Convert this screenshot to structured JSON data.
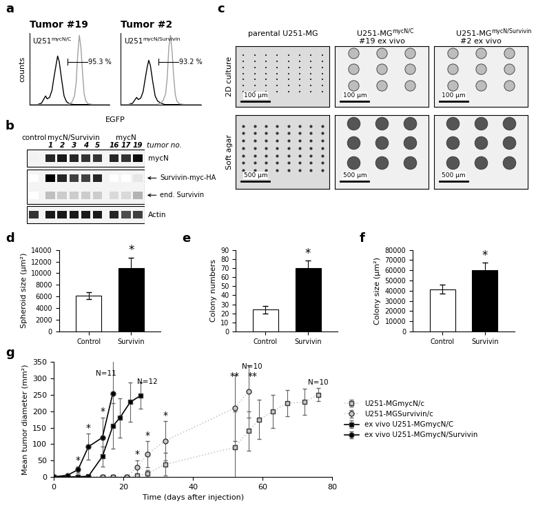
{
  "chart_data": [
    {
      "panel": "a",
      "type": "flow",
      "xlabel": "EGFP",
      "ylabel": "counts",
      "xlim": [
        0,
        100
      ],
      "ylim": [
        0,
        100
      ],
      "tick_labels": false,
      "plots": [
        {
          "title": "Tumor #19",
          "label": {
            "text": "U251",
            "sup": "mycN/C"
          },
          "gate": {
            "from": 47,
            "to": 72,
            "label": "95.3 %"
          },
          "series": [
            {
              "color": "#000000",
              "x": [
                0,
                10,
                15,
                18,
                20,
                22,
                25,
                28,
                30,
                33,
                35,
                37,
                40,
                43,
                46,
                50,
                55,
                100
              ],
              "values": [
                0,
                0,
                2,
                8,
                12,
                8,
                10,
                20,
                35,
                55,
                68,
                60,
                35,
                12,
                4,
                1,
                0,
                0
              ]
            },
            {
              "color": "#a0a0a0",
              "x": [
                0,
                45,
                50,
                53,
                56,
                58,
                60,
                62,
                64,
                66,
                68,
                70,
                73,
                80,
                100
              ],
              "values": [
                0,
                0,
                1,
                4,
                12,
                30,
                70,
                97,
                80,
                45,
                15,
                5,
                1,
                0,
                0
              ]
            }
          ]
        },
        {
          "title": "Tumor #2",
          "label": {
            "text": "U251",
            "sup": "mycN/Survivin"
          },
          "gate": {
            "from": 47,
            "to": 72,
            "label": "93.2 %"
          },
          "series": [
            {
              "color": "#000000",
              "x": [
                0,
                10,
                15,
                18,
                20,
                22,
                25,
                28,
                30,
                33,
                35,
                37,
                40,
                43,
                46,
                50,
                55,
                100
              ],
              "values": [
                0,
                0,
                2,
                7,
                10,
                7,
                9,
                18,
                32,
                52,
                62,
                55,
                32,
                12,
                5,
                2,
                0,
                0
              ]
            },
            {
              "color": "#a0a0a0",
              "x": [
                0,
                45,
                50,
                53,
                56,
                58,
                60,
                62,
                64,
                66,
                68,
                70,
                73,
                80,
                100
              ],
              "values": [
                0,
                0,
                2,
                6,
                15,
                38,
                80,
                97,
                75,
                40,
                14,
                5,
                1,
                0,
                0
              ]
            }
          ]
        }
      ]
    },
    {
      "panel": "b",
      "type": "blot",
      "groups": [
        {
          "label": "control",
          "lanes": [
            null
          ]
        },
        {
          "label": "mycN/Survivin",
          "lanes": [
            "1",
            "2",
            "3",
            "4",
            "5"
          ]
        },
        {
          "label": "mycN",
          "lanes": [
            "16",
            "17",
            "19"
          ]
        }
      ],
      "lane_title": "tumor no.",
      "blots": [
        {
          "rows": [
            {
              "label": "mycN",
              "intensity": [
                0.05,
                0.85,
                0.9,
                0.85,
                0.8,
                0.8,
                0.85,
                0.8,
                0.95
              ]
            }
          ]
        },
        {
          "rows": [
            {
              "label": "Survivin-myc-HA",
              "intensity": [
                0,
                1.0,
                0.85,
                0.75,
                0.75,
                0.85,
                0,
                0,
                0.1
              ]
            },
            {
              "label": "end. Survivin",
              "intensity": [
                0,
                0.25,
                0.2,
                0.2,
                0.2,
                0.2,
                0.15,
                0.15,
                0.3
              ]
            }
          ]
        },
        {
          "rows": [
            {
              "label": "Actin",
              "intensity": [
                0.8,
                0.9,
                0.9,
                0.9,
                0.9,
                0.9,
                0.85,
                0.7,
                0.75
              ]
            }
          ]
        }
      ]
    },
    {
      "panel": "c",
      "type": "image_grid",
      "columns": [
        {
          "text": "parental U251-MG"
        },
        {
          "text": "U251-MG",
          "sup": "mycN/C",
          "line2": "#19 ex vivo"
        },
        {
          "text": "U251-MG",
          "sup": "mycN/Survivin",
          "line2": "#2 ex vivo"
        }
      ],
      "rows": [
        {
          "label": "2D culture",
          "scale_bars": [
            "100 µm",
            "100 µm",
            "100 µm"
          ]
        },
        {
          "label": "Soft agar",
          "scale_bars": [
            "500 µm",
            "500 µm",
            "500 µm"
          ]
        }
      ]
    },
    {
      "panel": "d",
      "type": "bar",
      "ylabel": "Spheroid size (µm²)",
      "categories": [
        "Control",
        "Survivin"
      ],
      "values": [
        6100,
        10900
      ],
      "errors": [
        600,
        1800
      ],
      "colors": [
        "#ffffff",
        "#000000"
      ],
      "ylim": [
        0,
        14000
      ],
      "yticks": [
        0,
        2000,
        4000,
        6000,
        8000,
        10000,
        12000,
        14000
      ],
      "annotations": [
        {
          "text": "*",
          "category": "Survivin"
        }
      ]
    },
    {
      "panel": "e",
      "type": "bar",
      "ylabel": "Colony numbers",
      "categories": [
        "Control",
        "Survivin"
      ],
      "values": [
        24,
        70
      ],
      "errors": [
        4,
        8
      ],
      "colors": [
        "#ffffff",
        "#000000"
      ],
      "ylim": [
        0,
        90
      ],
      "yticks": [
        0,
        10,
        20,
        30,
        40,
        50,
        60,
        70,
        80,
        90
      ],
      "annotations": [
        {
          "text": "*",
          "category": "Survivin"
        }
      ]
    },
    {
      "panel": "f",
      "type": "bar",
      "ylabel": "Colony size (µm²)",
      "categories": [
        "Control",
        "Survivin"
      ],
      "values": [
        41500,
        60000
      ],
      "errors": [
        4500,
        7500
      ],
      "colors": [
        "#ffffff",
        "#000000"
      ],
      "ylim": [
        0,
        80000
      ],
      "yticks": [
        0,
        10000,
        20000,
        30000,
        40000,
        50000,
        60000,
        70000,
        80000
      ],
      "annotations": [
        {
          "text": "*",
          "category": "Survivin"
        }
      ]
    },
    {
      "panel": "g",
      "type": "line",
      "xlabel": "Time (days after injection)",
      "ylabel": "Mean tumor diameter (mm²)",
      "xlim": [
        0,
        80
      ],
      "xticks": [
        0,
        20,
        40,
        60,
        80
      ],
      "ylim": [
        0,
        350
      ],
      "yticks": [
        0,
        50,
        100,
        150,
        200,
        250,
        300,
        350
      ],
      "legend": "right",
      "series": [
        {
          "name": "U251-MGmycN/c",
          "color": "#c8c8c8",
          "marker": "square",
          "line_style": "dotted",
          "x": [
            0,
            4,
            7,
            10,
            14,
            17,
            21,
            24,
            27,
            32,
            52,
            56,
            59,
            63,
            67,
            72,
            76
          ],
          "values": [
            0,
            0,
            0,
            0,
            0,
            0,
            0,
            3,
            10,
            38,
            90,
            140,
            175,
            200,
            225,
            228,
            250
          ],
          "errors": [
            0,
            0,
            0,
            0,
            0,
            0,
            0,
            3,
            10,
            35,
            110,
            60,
            60,
            50,
            40,
            40,
            20
          ]
        },
        {
          "name": "U251-MGSurvivin/c",
          "color": "#c8c8c8",
          "marker": "circle",
          "line_style": "dotted",
          "x": [
            0,
            4,
            7,
            10,
            14,
            17,
            21,
            24,
            27,
            32,
            52,
            56
          ],
          "values": [
            0,
            0,
            0,
            0,
            0,
            0,
            0,
            30,
            70,
            110,
            210,
            260
          ],
          "errors": [
            0,
            0,
            0,
            0,
            0,
            0,
            0,
            20,
            40,
            60,
            100,
            80
          ]
        },
        {
          "name": "ex vivo U251-MGmycN/C",
          "color": "#000000",
          "marker": "square",
          "line_style": "solid",
          "x": [
            0,
            4,
            7,
            10,
            14,
            17,
            19,
            22,
            25
          ],
          "values": [
            0,
            0,
            0,
            2,
            62,
            155,
            180,
            228,
            248
          ],
          "errors": [
            0,
            0,
            0,
            2,
            30,
            70,
            60,
            60,
            40
          ]
        },
        {
          "name": "ex vivo U251-MGmycN/Survivin",
          "color": "#000000",
          "marker": "circle",
          "line_style": "solid",
          "x": [
            0,
            4,
            7,
            10,
            14,
            17
          ],
          "values": [
            0,
            5,
            22,
            92,
            120,
            255
          ],
          "errors": [
            0,
            3,
            10,
            40,
            60,
            100
          ]
        }
      ],
      "annotations": [
        {
          "text": "N=11",
          "x": 15,
          "y": 305
        },
        {
          "text": "N=12",
          "x": 27,
          "y": 280
        },
        {
          "text": "N=10",
          "x": 57,
          "y": 325
        },
        {
          "text": "N=10",
          "x": 76,
          "y": 278
        },
        {
          "text": "*",
          "x": 7,
          "y": 35
        },
        {
          "text": "*",
          "x": 10,
          "y": 135
        },
        {
          "text": "*",
          "x": 14,
          "y": 185
        },
        {
          "text": "*",
          "x": 24,
          "y": 55
        },
        {
          "text": "*",
          "x": 27,
          "y": 112
        },
        {
          "text": "*",
          "x": 32,
          "y": 172
        },
        {
          "text": "**",
          "x": 52,
          "y": 292
        },
        {
          "text": "**",
          "x": 57,
          "y": 292
        }
      ]
    }
  ]
}
